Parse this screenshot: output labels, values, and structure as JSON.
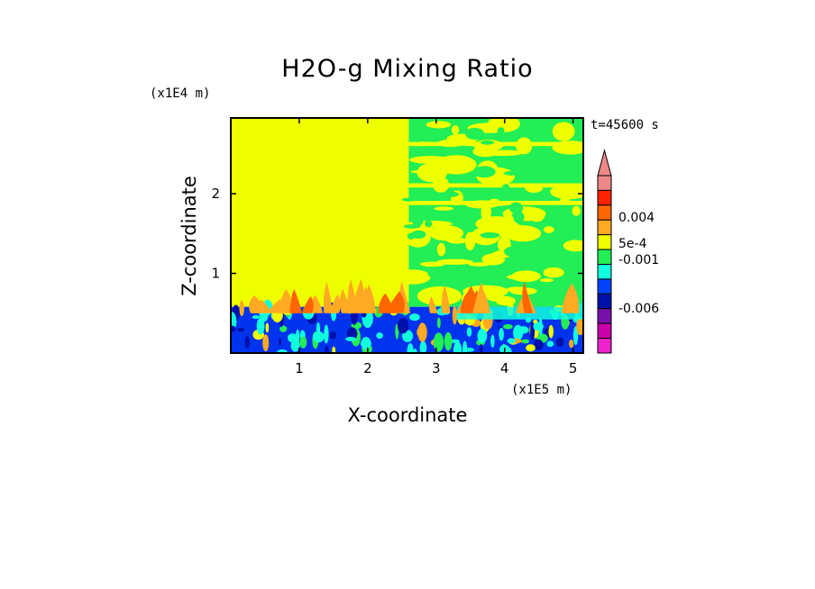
{
  "chart_data": {
    "type": "heatmap",
    "title": "H2O-g Mixing Ratio",
    "xlabel": "X-coordinate",
    "ylabel": "Z-coordinate",
    "x_unit_label": "(x1E5 m)",
    "y_unit_label": "(x1E4 m)",
    "time_label": "t=45600 s",
    "x_ticks": [
      "1",
      "2",
      "3",
      "4",
      "5"
    ],
    "y_ticks": [
      "1",
      "2"
    ],
    "xlim": [
      0,
      5.15
    ],
    "ylim": [
      0,
      2.95
    ],
    "fields": [
      {
        "name": "left upper domain",
        "x": [
          0,
          2.6
        ],
        "z": [
          0.58,
          2.95
        ],
        "level_color": "#eeff00"
      },
      {
        "name": "right upper domain",
        "x": [
          2.6,
          5.15
        ],
        "z": [
          0.58,
          2.95
        ],
        "level_color": "#22ee55"
      },
      {
        "name": "surface layer",
        "x": [
          0,
          5.15
        ],
        "z": [
          0,
          0.58
        ],
        "level_color": "#0033ee"
      }
    ],
    "colorbar": {
      "labels": [
        "0.004",
        "5e-4",
        "-0.001",
        "-0.006"
      ],
      "levels": [
        {
          "color": "#ee8888"
        },
        {
          "color": "#ff2200"
        },
        {
          "color": "#ff6600"
        },
        {
          "color": "#ffaa22"
        },
        {
          "color": "#eeff00"
        },
        {
          "color": "#22ee55"
        },
        {
          "color": "#11ffdd"
        },
        {
          "color": "#0044ff"
        },
        {
          "color": "#0011aa"
        },
        {
          "color": "#7711aa"
        },
        {
          "color": "#cc00aa"
        },
        {
          "color": "#ee22cc"
        }
      ],
      "extend": "max",
      "extend_color": "#ee8888"
    }
  }
}
